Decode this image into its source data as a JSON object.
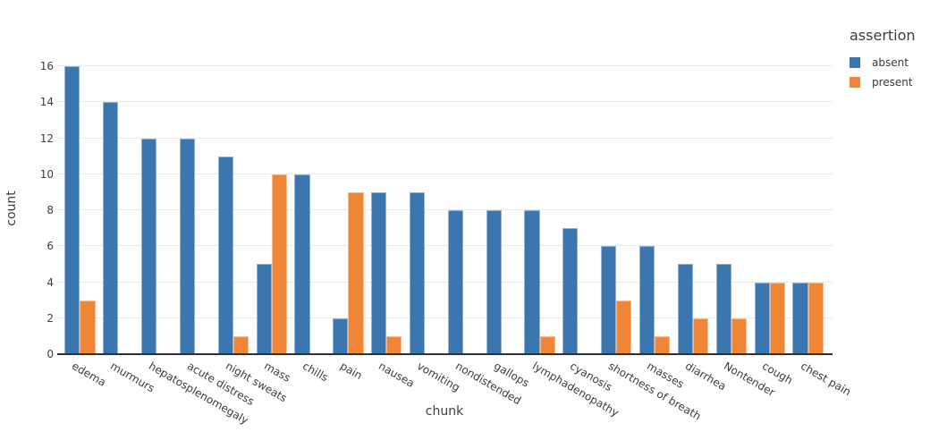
{
  "figure": {
    "background_color": "#ffffff",
    "grid_color": "#e9e9ec",
    "axis_line_color": "#2f2f2f",
    "text_color": "#3b3b3b"
  },
  "chart_data": {
    "type": "bar",
    "mode": "grouped",
    "title": "",
    "xlabel": "chunk",
    "ylabel": "count",
    "ylim": [
      0,
      16.8
    ],
    "yticks": [
      0,
      2,
      4,
      6,
      8,
      10,
      12,
      14,
      16
    ],
    "grid": "horizontal",
    "legend_title": "assertion",
    "legend_position": "top-right-outside",
    "categories": [
      "edema",
      "murmurs",
      "hepatosplenomegaly",
      "acute distress",
      "night sweats",
      "mass",
      "chills",
      "pain",
      "nausea",
      "vomiting",
      "nondistended",
      "gallops",
      "lymphadenopathy",
      "cyanosis",
      "shortness of breath",
      "masses",
      "diarrhea",
      "Nontender",
      "cough",
      "chest pain"
    ],
    "series": [
      {
        "name": "absent",
        "color": "#3b76af",
        "values": [
          16,
          14,
          12,
          12,
          11,
          5,
          10,
          2,
          9,
          9,
          8,
          8,
          8,
          7,
          6,
          6,
          5,
          5,
          4,
          4
        ]
      },
      {
        "name": "present",
        "color": "#ee8636",
        "values": [
          3,
          0,
          0,
          0,
          1,
          10,
          0,
          9,
          1,
          0,
          0,
          0,
          1,
          0,
          3,
          1,
          2,
          2,
          4,
          4
        ]
      }
    ]
  }
}
